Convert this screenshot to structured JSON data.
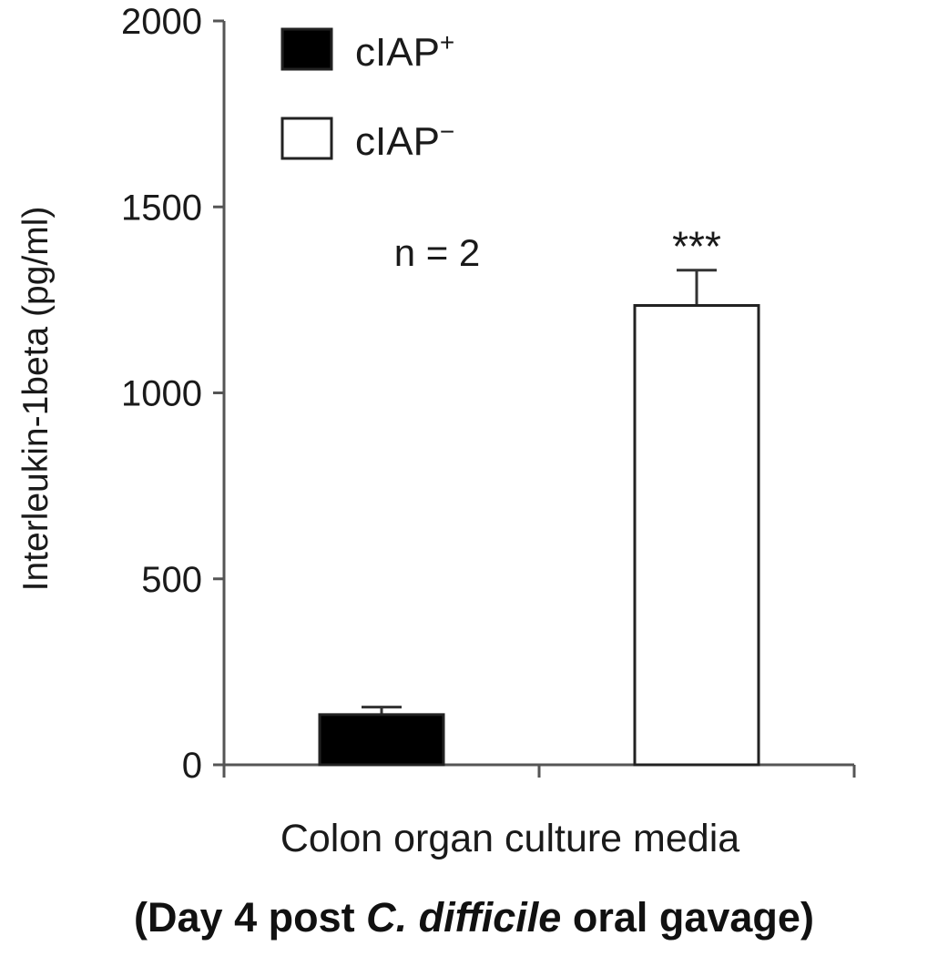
{
  "chart_data": {
    "type": "bar",
    "ylabel": "Interleukin-1beta (pg/ml)",
    "xlabel": "Colon organ culture media",
    "subtitle": {
      "prefix": "(Day 4 post ",
      "italic": "C. difficile",
      "suffix": " oral gavage)"
    },
    "ylim": [
      0,
      2000
    ],
    "yticks": [
      0,
      500,
      1000,
      1500,
      2000
    ],
    "ytick_labels": [
      "0",
      "500",
      "1000",
      "1500",
      "2000"
    ],
    "grid": false,
    "legend_position": "top-left",
    "annotation": "n = 2",
    "series": [
      {
        "name_base": "cIAP",
        "name_sup": "+",
        "value": 135,
        "error": 20,
        "fill": "#000000",
        "significance": ""
      },
      {
        "name_base": "cIAP",
        "name_sup": "−",
        "value": 1235,
        "error": 95,
        "fill": "#ffffff",
        "significance": "***"
      }
    ]
  }
}
